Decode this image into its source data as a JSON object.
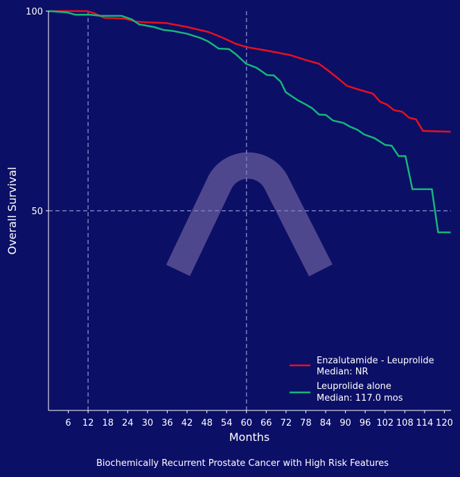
{
  "chart_data": {
    "type": "line",
    "title": "",
    "caption": "Biochemically Recurrent Prostate Cancer with High Risk Features",
    "xlabel": "Months",
    "ylabel": "Overall Survival",
    "xlim": [
      0,
      122
    ],
    "ylim": [
      0,
      100
    ],
    "x_ticks": [
      6,
      12,
      18,
      24,
      30,
      36,
      42,
      48,
      54,
      60,
      66,
      72,
      78,
      84,
      90,
      96,
      102,
      108,
      114,
      120
    ],
    "y_ticks": [
      50,
      100
    ],
    "reference_lines": {
      "x": [
        12,
        60
      ],
      "y": [
        50
      ]
    },
    "grid": false,
    "legend_position": "bottom-right",
    "series": [
      {
        "name": "Enzalutamide - Leuprolide",
        "median": "Median: NR",
        "color": "#e8101e",
        "x": [
          0,
          11.7,
          13.8,
          16.9,
          23.2,
          26.4,
          29.5,
          35.8,
          39.0,
          42.1,
          48.4,
          50.5,
          52.6,
          56.8,
          59.9,
          66.2,
          69.4,
          73.6,
          77.8,
          82.0,
          85.1,
          88.3,
          90.4,
          94.6,
          98.4,
          100.5,
          102.6,
          104.7,
          107.2,
          109.3,
          111.4,
          113.5,
          121.9
        ],
        "y": [
          100,
          100,
          99.5,
          98.3,
          98.1,
          97.4,
          97.2,
          97.0,
          96.5,
          96.0,
          94.8,
          94.1,
          93.4,
          91.8,
          91.0,
          90.1,
          89.6,
          88.9,
          87.8,
          86.8,
          84.9,
          82.8,
          81.3,
          80.2,
          79.3,
          77.3,
          76.6,
          75.2,
          74.8,
          73.3,
          72.9,
          70.0,
          69.8
        ]
      },
      {
        "name": "Leuprolide alone",
        "median": "Median: 117.0 mos",
        "color": "#14b87a",
        "x": [
          0,
          5.4,
          8.1,
          12.7,
          15.9,
          22.2,
          25.3,
          27.4,
          32.0,
          34.8,
          37.9,
          42.1,
          46.3,
          48.4,
          51.6,
          54.7,
          56.8,
          59.9,
          63.1,
          66.2,
          68.3,
          70.4,
          71.9,
          75.7,
          77.8,
          79.9,
          82.0,
          84.1,
          86.2,
          89.4,
          91.5,
          93.6,
          95.7,
          98.8,
          102.0,
          104.0,
          106.1,
          108.2,
          110.3,
          116.2,
          118.1,
          121.9
        ],
        "y": [
          100,
          99.7,
          99.1,
          99.1,
          98.8,
          98.8,
          97.9,
          96.7,
          96.0,
          95.3,
          95.0,
          94.3,
          93.2,
          92.4,
          90.6,
          90.5,
          89.2,
          86.8,
          85.8,
          84.0,
          83.9,
          82.3,
          79.7,
          77.6,
          76.7,
          75.7,
          74.1,
          74.0,
          72.6,
          72.0,
          71.0,
          70.3,
          69.1,
          68.2,
          66.5,
          66.3,
          63.7,
          63.7,
          55.4,
          55.4,
          44.6,
          44.6
        ]
      }
    ]
  },
  "colors": {
    "background": "#0c0f66",
    "reference_line": "#7b7fc4",
    "watermark": "#6b5f9e"
  },
  "watermark_icon": "arch-logo-icon"
}
